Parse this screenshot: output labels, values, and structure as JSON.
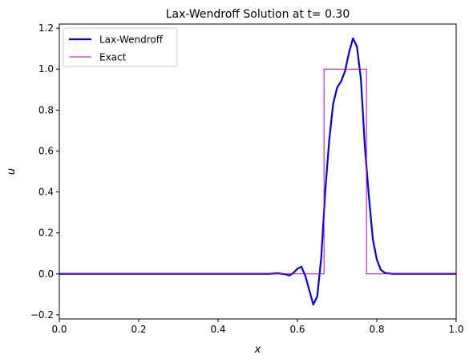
{
  "chart_data": {
    "type": "line",
    "title": "Lax-Wendroff Solution at t= 0.30",
    "xlabel": "x",
    "ylabel": "u",
    "xlim": [
      0.0,
      1.0
    ],
    "ylim": [
      -0.22,
      1.22
    ],
    "xticks": [
      0.0,
      0.2,
      0.4,
      0.6,
      0.8,
      1.0
    ],
    "xtick_labels": [
      "0.0",
      "0.2",
      "0.4",
      "0.6",
      "0.8",
      "1.0"
    ],
    "yticks": [
      -0.2,
      0.0,
      0.2,
      0.4,
      0.6,
      0.8,
      1.0,
      1.2
    ],
    "ytick_labels": [
      "−0.2",
      "0.0",
      "0.2",
      "0.4",
      "0.6",
      "0.8",
      "1.0",
      "1.2"
    ],
    "grid": false,
    "legend_position": "top-left",
    "series": [
      {
        "name": "Lax-Wendroff",
        "color": "#0000ee",
        "x": [
          0.0,
          0.5,
          0.53,
          0.55,
          0.57,
          0.58,
          0.59,
          0.6,
          0.61,
          0.62,
          0.63,
          0.64,
          0.65,
          0.66,
          0.67,
          0.68,
          0.69,
          0.7,
          0.71,
          0.72,
          0.73,
          0.74,
          0.75,
          0.76,
          0.77,
          0.78,
          0.79,
          0.8,
          0.81,
          0.82,
          0.84,
          0.86,
          1.0
        ],
        "y": [
          0.0,
          0.0,
          0.0,
          0.003,
          -0.002,
          -0.008,
          0.005,
          0.025,
          0.035,
          -0.01,
          -0.08,
          -0.15,
          -0.11,
          0.08,
          0.4,
          0.65,
          0.83,
          0.91,
          0.94,
          0.99,
          1.08,
          1.15,
          1.11,
          0.95,
          0.62,
          0.38,
          0.17,
          0.07,
          0.02,
          0.005,
          0.0,
          0.0,
          0.0
        ]
      },
      {
        "name": "Exact",
        "color": "#bf00bf",
        "x": [
          0.0,
          0.667,
          0.667,
          0.774,
          0.774,
          1.0
        ],
        "y": [
          0.0,
          0.0,
          1.0,
          1.0,
          0.0,
          0.0
        ]
      }
    ]
  }
}
